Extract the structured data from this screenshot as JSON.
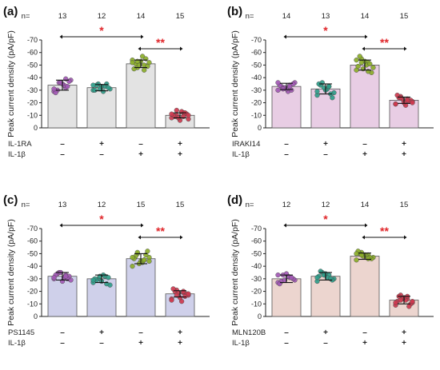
{
  "chart_data": [
    {
      "type": "bar",
      "panel_label": "(a)",
      "ylabel": "Peak current density (pA/pF)",
      "ylim": [
        0,
        -70
      ],
      "yticks": [
        "-70",
        "-60",
        "-50",
        "-40",
        "-30",
        "-20",
        "-10",
        "0"
      ],
      "bar_color": "#e3e3e3",
      "n_prefix": "n=",
      "n": [
        "13",
        "12",
        "14",
        "15"
      ],
      "values": [
        -34,
        -32,
        -51,
        -10
      ],
      "errors": [
        4,
        2.5,
        3,
        2
      ],
      "dot_colors": [
        "#a259b5",
        "#2f9e8a",
        "#8cae2a",
        "#cf3a50"
      ],
      "dots": [
        [
          -29,
          -32,
          -36,
          -38,
          -34,
          -30,
          -37,
          -35,
          -28,
          -33,
          -36,
          -31,
          -39
        ],
        [
          -30,
          -33,
          -35,
          -31,
          -29,
          -34,
          -32,
          -33,
          -30,
          -35,
          -31,
          -34
        ],
        [
          -54,
          -50,
          -48,
          -52,
          -57,
          -51,
          -49,
          -53,
          -47,
          -55,
          -50,
          -52,
          -46,
          -53
        ],
        [
          -8,
          -12,
          -10,
          -7,
          -13,
          -9,
          -11,
          -6,
          -10,
          -12,
          -8,
          -11,
          -9,
          -14,
          -10
        ]
      ],
      "conditions": [
        {
          "name": "IL-1RA",
          "signs": [
            "–",
            "+",
            "–",
            "+"
          ]
        },
        {
          "name": "IL-1β",
          "signs": [
            "–",
            "–",
            "+",
            "+"
          ]
        }
      ],
      "significance": [
        {
          "label": "*",
          "from": 0,
          "to": 2
        },
        {
          "label": "**",
          "from": 2,
          "to": 3
        }
      ]
    },
    {
      "type": "bar",
      "panel_label": "(b)",
      "ylabel": "Peak current density (pA/pF)",
      "ylim": [
        0,
        -70
      ],
      "yticks": [
        "-70",
        "-60",
        "-50",
        "-40",
        "-30",
        "-20",
        "-10",
        "0"
      ],
      "bar_color": "#e8cde4",
      "n_prefix": "n=",
      "n": [
        "14",
        "13",
        "14",
        "15"
      ],
      "values": [
        -33,
        -31,
        -50,
        -22
      ],
      "errors": [
        2.5,
        4,
        4,
        2.5
      ],
      "dot_colors": [
        "#a259b5",
        "#2f9e8a",
        "#8cae2a",
        "#cf3a50"
      ],
      "dots": [
        [
          -30,
          -34,
          -32,
          -36,
          -29,
          -33,
          -35,
          -31,
          -34,
          -30,
          -32,
          -36,
          -33,
          -31
        ],
        [
          -26,
          -33,
          -36,
          -28,
          -31,
          -34,
          -24,
          -30,
          -35,
          -27,
          -32,
          -29,
          -33
        ],
        [
          -46,
          -52,
          -55,
          -48,
          -50,
          -57,
          -44,
          -53,
          -49,
          -51,
          -47,
          -54,
          -45,
          -52
        ],
        [
          -19,
          -23,
          -25,
          -21,
          -18,
          -24,
          -22,
          -20,
          -26,
          -21,
          -23,
          -19,
          -22,
          -24,
          -20
        ]
      ],
      "conditions": [
        {
          "name": "IRAKI14",
          "signs": [
            "–",
            "+",
            "–",
            "+"
          ]
        },
        {
          "name": "IL-1β",
          "signs": [
            "–",
            "–",
            "+",
            "+"
          ]
        }
      ],
      "significance": [
        {
          "label": "*",
          "from": 0,
          "to": 2
        },
        {
          "label": "**",
          "from": 2,
          "to": 3
        }
      ]
    },
    {
      "type": "bar",
      "panel_label": "(c)",
      "ylabel": "Peak current density (pA/pF)",
      "ylim": [
        0,
        -70
      ],
      "yticks": [
        "-70",
        "-60",
        "-50",
        "-40",
        "-30",
        "-20",
        "-10",
        "0"
      ],
      "bar_color": "#cfd0ea",
      "n_prefix": "n=",
      "n": [
        "13",
        "12",
        "15",
        "15"
      ],
      "values": [
        -32,
        -30,
        -46,
        -18
      ],
      "errors": [
        3,
        3,
        4,
        2.5
      ],
      "dot_colors": [
        "#a259b5",
        "#2f9e8a",
        "#8cae2a",
        "#cf3a50"
      ],
      "dots": [
        [
          -30,
          -33,
          -35,
          -29,
          -31,
          -34,
          -32,
          -28,
          -33,
          -30,
          -35,
          -31,
          -32
        ],
        [
          -27,
          -32,
          -30,
          -25,
          -33,
          -29,
          -31,
          -28,
          -30,
          -26,
          -32,
          -29
        ],
        [
          -40,
          -45,
          -50,
          -47,
          -43,
          -48,
          -52,
          -44,
          -46,
          -49,
          -42,
          -47,
          -45,
          -51,
          -44
        ],
        [
          -14,
          -19,
          -21,
          -17,
          -12,
          -20,
          -18,
          -15,
          -22,
          -16,
          -19,
          -13,
          -20,
          -17,
          -18
        ]
      ],
      "conditions": [
        {
          "name": "PS1145",
          "signs": [
            "–",
            "+",
            "–",
            "+"
          ]
        },
        {
          "name": "IL-1β",
          "signs": [
            "–",
            "–",
            "+",
            "+"
          ]
        }
      ],
      "significance": [
        {
          "label": "*",
          "from": 0,
          "to": 2
        },
        {
          "label": "**",
          "from": 2,
          "to": 3
        }
      ]
    },
    {
      "type": "bar",
      "panel_label": "(d)",
      "ylabel": "Peak current density (pA/pF)",
      "ylim": [
        0,
        -70
      ],
      "yticks": [
        "-70",
        "-60",
        "-50",
        "-40",
        "-30",
        "-20",
        "-10",
        "0"
      ],
      "bar_color": "#ecd5cf",
      "n_prefix": "n=",
      "n": [
        "12",
        "12",
        "14",
        "15"
      ],
      "values": [
        -30,
        -32,
        -48,
        -13
      ],
      "errors": [
        3,
        3,
        2.5,
        3
      ],
      "dot_colors": [
        "#a259b5",
        "#2f9e8a",
        "#8cae2a",
        "#cf3a50"
      ],
      "dots": [
        [
          -27,
          -31,
          -33,
          -29,
          -32,
          -28,
          -30,
          -34,
          -26,
          -31,
          -29,
          -33
        ],
        [
          -28,
          -33,
          -35,
          -30,
          -31,
          -36,
          -29,
          -34,
          -32,
          -30,
          -33,
          -31
        ],
        [
          -45,
          -49,
          -51,
          -47,
          -48,
          -50,
          -46,
          -49,
          -52,
          -47,
          -48,
          -50,
          -46,
          -49
        ],
        [
          -9,
          -14,
          -17,
          -11,
          -13,
          -16,
          -10,
          -15,
          -12,
          -8,
          -14,
          -11,
          -16,
          -13,
          -12
        ]
      ],
      "conditions": [
        {
          "name": "MLN120B",
          "signs": [
            "–",
            "+",
            "–",
            "+"
          ]
        },
        {
          "name": "IL-1β",
          "signs": [
            "–",
            "–",
            "+",
            "+"
          ]
        }
      ],
      "significance": [
        {
          "label": "*",
          "from": 0,
          "to": 2
        },
        {
          "label": "**",
          "from": 2,
          "to": 3
        }
      ]
    }
  ]
}
